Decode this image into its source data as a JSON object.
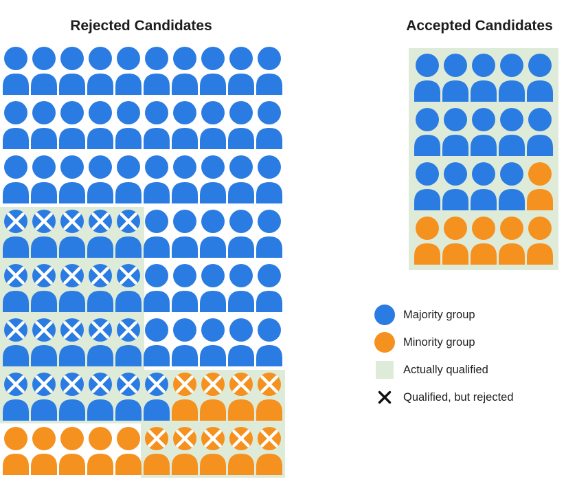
{
  "titles": {
    "rejected": "Rejected Candidates",
    "accepted": "Accepted Candidates"
  },
  "colors": {
    "majority": "#2A7CE2",
    "minority": "#F5911E",
    "qualified_bg": "#DFEBD9",
    "icon_x_mark": "#FFFFFF",
    "legend_x_mark": "#111111",
    "text": "#1D1D1D",
    "background": "#FFFFFF"
  },
  "rejected_grid": {
    "encoding": {
      "B": "majority person",
      "O": "minority person",
      "lowercase": "person marked with X (qualified, but rejected)"
    },
    "rows": [
      "BBBBBBBBBB",
      "BBBBBBBBBB",
      "BBBBBBBBBB",
      "bbbbbBBBBB",
      "bbbbbBBBBB",
      "bbbbbBBBBB",
      "bbbbbboooo",
      "OOOOOooooo"
    ],
    "qualified_regions": [
      {
        "col": 0,
        "row": 3,
        "w": 5,
        "h": 4,
        "pad": 4
      },
      {
        "col": 5,
        "row": 6,
        "w": 5,
        "h": 2,
        "pad": 4
      }
    ]
  },
  "accepted_grid": {
    "encoding": {
      "B": "majority person",
      "O": "minority person"
    },
    "rows": [
      "BBBBB",
      "BBBBB",
      "BBBBO",
      "OOOOO"
    ],
    "qualified_regions": [
      {
        "col": 0,
        "row": 0,
        "w": 5,
        "h": 4,
        "pad": 8
      }
    ]
  },
  "legend": {
    "items": [
      {
        "key": "majority",
        "swatch": "circle",
        "color_ref": "majority",
        "label": "Majority group"
      },
      {
        "key": "minority",
        "swatch": "circle",
        "color_ref": "minority",
        "label": "Minority group"
      },
      {
        "key": "qualified",
        "swatch": "square",
        "color_ref": "qualified_bg",
        "label": "Actually qualified"
      },
      {
        "key": "qualified-rejected",
        "swatch": "x",
        "color_ref": "legend_x_mark",
        "label": "Qualified, but rejected"
      }
    ]
  }
}
